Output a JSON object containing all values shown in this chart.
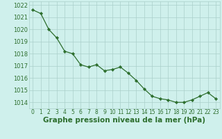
{
  "x": [
    0,
    1,
    2,
    3,
    4,
    5,
    6,
    7,
    8,
    9,
    10,
    11,
    12,
    13,
    14,
    15,
    16,
    17,
    18,
    19,
    20,
    21,
    22,
    23
  ],
  "y": [
    1021.6,
    1021.3,
    1020.0,
    1019.3,
    1018.2,
    1018.0,
    1017.1,
    1016.9,
    1017.1,
    1016.6,
    1016.7,
    1016.9,
    1016.4,
    1015.8,
    1015.1,
    1014.5,
    1014.3,
    1014.2,
    1014.0,
    1014.0,
    1014.2,
    1014.5,
    1014.8,
    1014.3
  ],
  "xlabel": "Graphe pression niveau de la mer (hPa)",
  "xlim": [
    -0.5,
    23.5
  ],
  "ylim": [
    1013.5,
    1022.3
  ],
  "yticks": [
    1014,
    1015,
    1016,
    1017,
    1018,
    1019,
    1020,
    1021,
    1022
  ],
  "xticks": [
    0,
    1,
    2,
    3,
    4,
    5,
    6,
    7,
    8,
    9,
    10,
    11,
    12,
    13,
    14,
    15,
    16,
    17,
    18,
    19,
    20,
    21,
    22,
    23
  ],
  "line_color": "#2d6e2d",
  "marker_color": "#2d6e2d",
  "bg_color": "#cff0ec",
  "grid_color": "#aacfca",
  "xlabel_color": "#2d6e2d",
  "tick_color": "#2d6e2d",
  "xlabel_fontsize": 7.5,
  "xlabel_fontweight": "bold",
  "tick_fontsize": 5.5,
  "ytick_fontsize": 6.0
}
